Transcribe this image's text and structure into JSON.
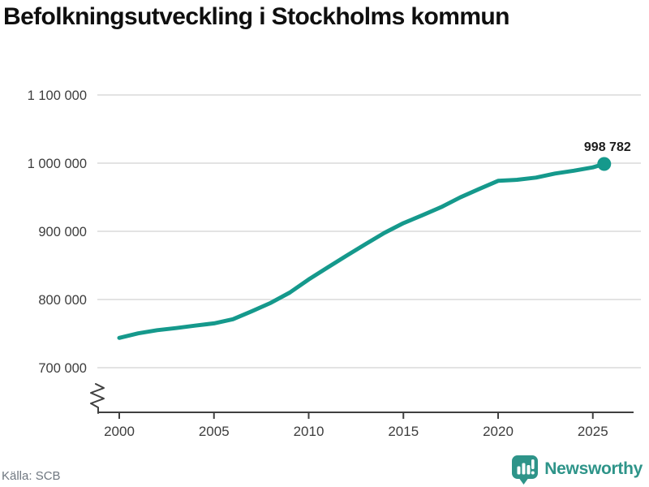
{
  "title": "Befolkningsutveckling i Stockholms kommun",
  "footer": {
    "source": "Källa: SCB",
    "brand": "Newsworthy"
  },
  "colors": {
    "line": "#15998c",
    "grid": "#e3e3e3",
    "axis": "#404040",
    "tick_text": "#3d3d3d",
    "end_label_text": "#1c1c1c",
    "brand": "#2e9489",
    "source_text": "#6f7780"
  },
  "chart_data": {
    "type": "line",
    "title": "Befolkningsutveckling i Stockholms kommun",
    "source": "Källa: SCB",
    "grid": true,
    "legend": false,
    "y_axis_break": true,
    "xlim": [
      1998.8,
      2027.2
    ],
    "ylim": [
      700000,
      1100000
    ],
    "x_ticks": [
      2000,
      2005,
      2010,
      2015,
      2020,
      2025
    ],
    "x_tick_labels": [
      "2000",
      "2005",
      "2010",
      "2015",
      "2020",
      "2025"
    ],
    "y_ticks": [
      700000,
      800000,
      900000,
      1000000,
      1100000
    ],
    "y_tick_labels": [
      "700 000",
      "800 000",
      "900 000",
      "1 000 000",
      "1 100 000"
    ],
    "series": [
      {
        "points": [
          [
            2000,
            743703
          ],
          [
            2001,
            750348
          ],
          [
            2002,
            754948
          ],
          [
            2003,
            758148
          ],
          [
            2004,
            761721
          ],
          [
            2005,
            765044
          ],
          [
            2006,
            771038
          ],
          [
            2007,
            782885
          ],
          [
            2008,
            795163
          ],
          [
            2009,
            810120
          ],
          [
            2010,
            829417
          ],
          [
            2011,
            847073
          ],
          [
            2012,
            864324
          ],
          [
            2013,
            881235
          ],
          [
            2014,
            897700
          ],
          [
            2015,
            911989
          ],
          [
            2016,
            923516
          ],
          [
            2017,
            935619
          ],
          [
            2018,
            949761
          ],
          [
            2019,
            962154
          ],
          [
            2020,
            974073
          ],
          [
            2021,
            975551
          ],
          [
            2022,
            978770
          ],
          [
            2023,
            984748
          ],
          [
            2024,
            988943
          ],
          [
            2025,
            993842
          ],
          [
            2025.6,
            998782
          ]
        ]
      }
    ],
    "end_value": 998782,
    "end_label": "998 782"
  }
}
